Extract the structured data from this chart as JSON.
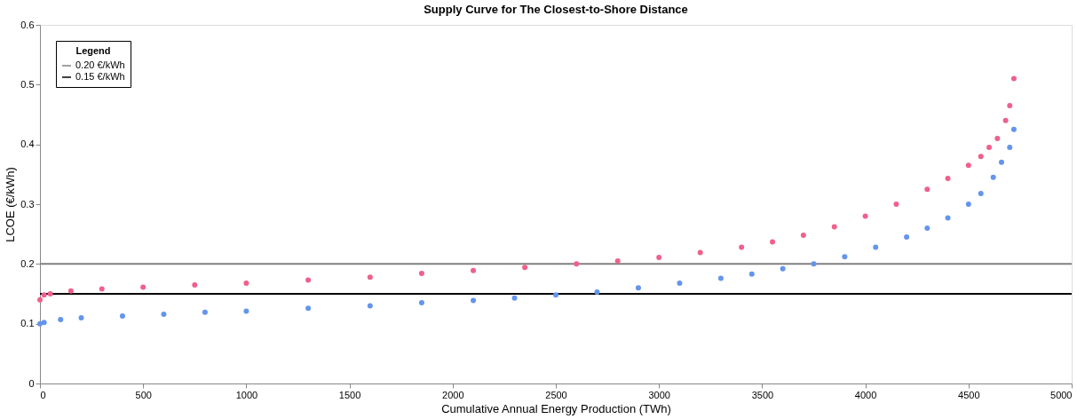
{
  "chart_data": {
    "type": "scatter",
    "title": "Supply Curve for The Closest-to-Shore Distance",
    "xlabel": "Cumulative Annual Energy Production (TWh)",
    "ylabel": "LCOE (€/kWh)",
    "legend_title": "Legend",
    "legend": "top left",
    "marker": "circle",
    "grid": false,
    "xlim": [
      0,
      5000
    ],
    "xticks": [
      0,
      500,
      1000,
      1500,
      2000,
      2500,
      3000,
      3500,
      4000,
      4500,
      5000
    ],
    "ylim": [
      0,
      0.6
    ],
    "yticks": [
      0,
      0.1,
      0.2,
      0.3,
      0.4,
      0.5,
      0.6
    ],
    "series": [
      {
        "color": "#f0608c",
        "x": [
          0,
          20,
          50,
          150,
          300,
          500,
          750,
          1000,
          1300,
          1600,
          1850,
          2100,
          2350,
          2600,
          2800,
          3000,
          3200,
          3400,
          3550,
          3700,
          3850,
          4000,
          4150,
          4300,
          4400,
          4500,
          4560,
          4600,
          4640,
          4680,
          4700,
          4720
        ],
        "values": [
          0.14,
          0.148,
          0.15,
          0.155,
          0.158,
          0.161,
          0.165,
          0.168,
          0.173,
          0.178,
          0.184,
          0.189,
          0.194,
          0.2,
          0.205,
          0.211,
          0.219,
          0.228,
          0.237,
          0.248,
          0.262,
          0.28,
          0.3,
          0.325,
          0.343,
          0.365,
          0.38,
          0.395,
          0.41,
          0.44,
          0.465,
          0.51
        ]
      },
      {
        "color": "#6495ed",
        "x": [
          0,
          20,
          100,
          200,
          400,
          600,
          800,
          1000,
          1300,
          1600,
          1850,
          2100,
          2300,
          2500,
          2700,
          2900,
          3100,
          3300,
          3450,
          3600,
          3750,
          3900,
          4050,
          4200,
          4300,
          4400,
          4500,
          4560,
          4620,
          4660,
          4700,
          4720
        ],
        "values": [
          0.1,
          0.102,
          0.107,
          0.11,
          0.113,
          0.116,
          0.119,
          0.121,
          0.126,
          0.13,
          0.135,
          0.139,
          0.143,
          0.148,
          0.153,
          0.16,
          0.168,
          0.176,
          0.183,
          0.192,
          0.2,
          0.212,
          0.228,
          0.245,
          0.26,
          0.277,
          0.3,
          0.318,
          0.345,
          0.37,
          0.395,
          0.425
        ]
      }
    ],
    "ref_lines": [
      {
        "axis": "y",
        "value": 0.2,
        "label": "0.20 €/kWh",
        "color": "#808080"
      },
      {
        "axis": "y",
        "value": 0.15,
        "label": "0.15 €/kWh",
        "color": "#000000"
      }
    ]
  }
}
